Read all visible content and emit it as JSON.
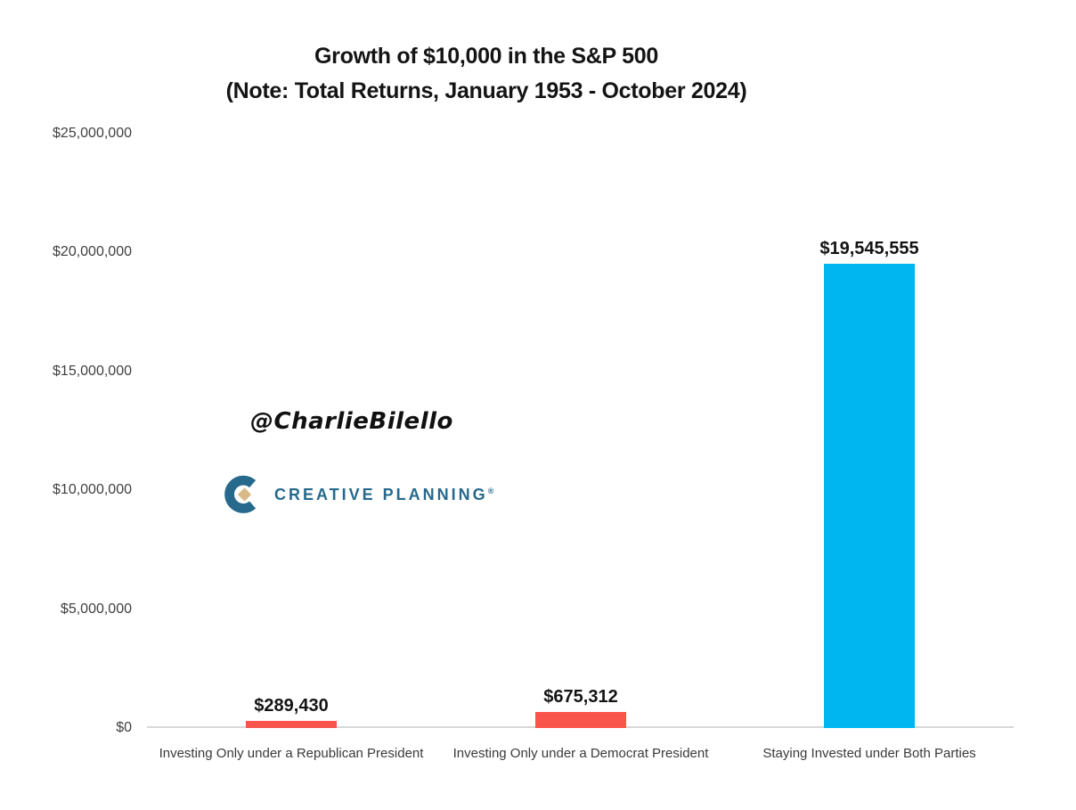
{
  "title": {
    "line1": "Growth of $10,000 in the S&P 500",
    "line2": "(Note: Total Returns, January 1953 - October 2024)"
  },
  "watermark": {
    "handle": "@CharlieBilello",
    "brand": "CREATIVE PLANNING",
    "brand_mark": "®"
  },
  "colors": {
    "republican_bar": "#f8544b",
    "democrat_bar": "#f8544b",
    "both_parties_bar": "#00b6f0",
    "axis_line": "#d8d8d8",
    "logo_teal": "#26698c",
    "logo_gold": "#d7ba88"
  },
  "chart_data": {
    "type": "bar",
    "title": "Growth of $10,000 in the S&P 500 (Note: Total Returns, January 1953 - October 2024)",
    "categories": [
      "Investing Only under a Republican President",
      "Investing Only under a Democrat President",
      "Staying Invested under Both Parties"
    ],
    "values": [
      289430,
      675312,
      19545555
    ],
    "value_labels": [
      "$289,430",
      "$675,312",
      "$19,545,555"
    ],
    "bar_colors": [
      "#f8544b",
      "#f8544b",
      "#00b6f0"
    ],
    "xlabel": "",
    "ylabel": "",
    "ylim": [
      0,
      25000000
    ],
    "y_ticks": [
      0,
      5000000,
      10000000,
      15000000,
      20000000,
      25000000
    ],
    "y_tick_labels": [
      "$0",
      "$5,000,000",
      "$10,000,000",
      "$15,000,000",
      "$20,000,000",
      "$25,000,000"
    ],
    "grid": false,
    "legend": false
  }
}
